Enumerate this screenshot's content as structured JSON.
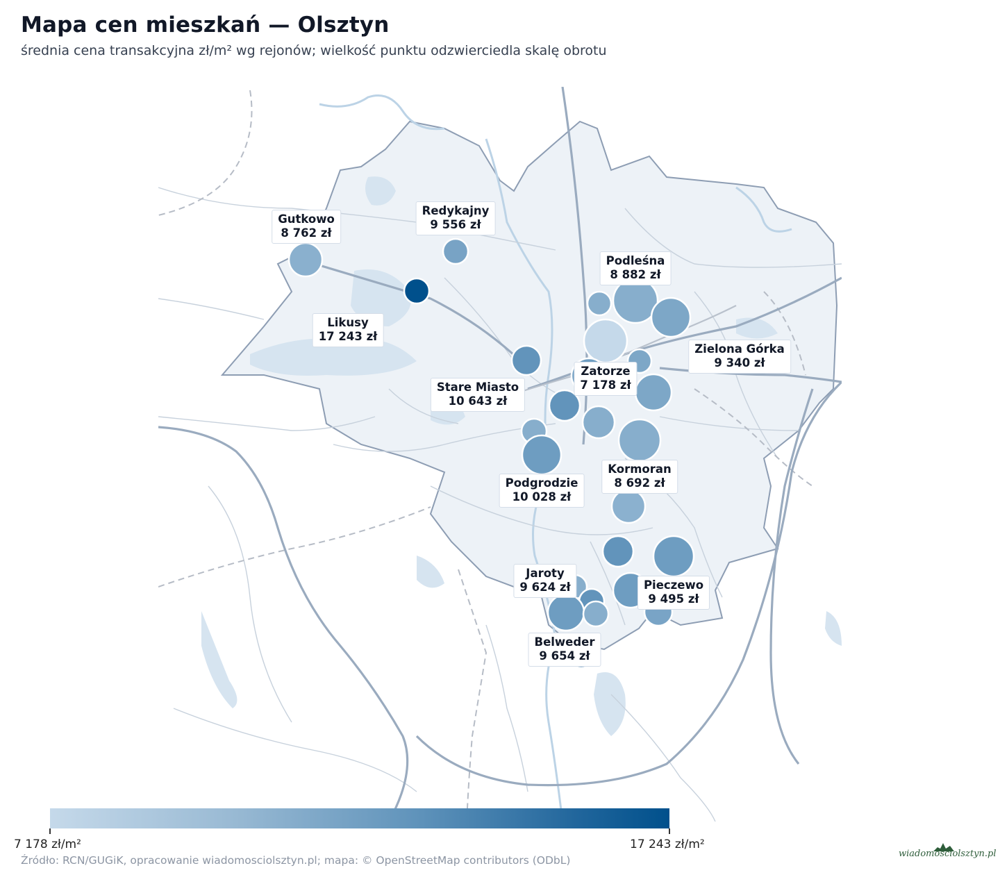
{
  "header": {
    "title": "Mapa cen mieszkań — Olsztyn",
    "subtitle": "średnia cena transakcyjna zł/m² wg rejonów; wielkość punktu odzwierciedla skalę obrotu"
  },
  "labels": [
    {
      "name": "Gutkowo",
      "price": "8 762 zł"
    },
    {
      "name": "Redykajny",
      "price": "9 556 zł"
    },
    {
      "name": "Podleśna",
      "price": "8 882 zł"
    },
    {
      "name": "Likusy",
      "price": "17 243 zł"
    },
    {
      "name": "Zielona Górka",
      "price": "9 340 zł"
    },
    {
      "name": "Zatorze",
      "price": "7 178 zł"
    },
    {
      "name": "Stare Miasto",
      "price": "10 643 zł"
    },
    {
      "name": "Kormoran",
      "price": "8 692 zł"
    },
    {
      "name": "Podgrodzie",
      "price": "10 028 zł"
    },
    {
      "name": "Jaroty",
      "price": "9 624 zł"
    },
    {
      "name": "Pieczewo",
      "price": "9 495 zł"
    },
    {
      "name": "Belweder",
      "price": "9 654 zł"
    }
  ],
  "legend": {
    "min_label": "7 178 zł/m²",
    "max_label": "17 243 zł/m²",
    "min_value": 7178,
    "max_value": 17243,
    "colors": [
      "#c5d9ea",
      "#00508c"
    ]
  },
  "footer": {
    "source": "Źródło: RCN/GUGiK, opracowanie wiadomosciolsztyn.pl; mapa: © OpenStreetMap contributors (ODbL)",
    "logo_text": "wiadomosciolsztyn.pl"
  },
  "colors": {
    "city_fill": "#edf2f7",
    "boundary": "#8d9db3",
    "road": "#c7d1dc",
    "water": "#d6e4f0",
    "bubble_stroke": "#ffffff"
  }
}
